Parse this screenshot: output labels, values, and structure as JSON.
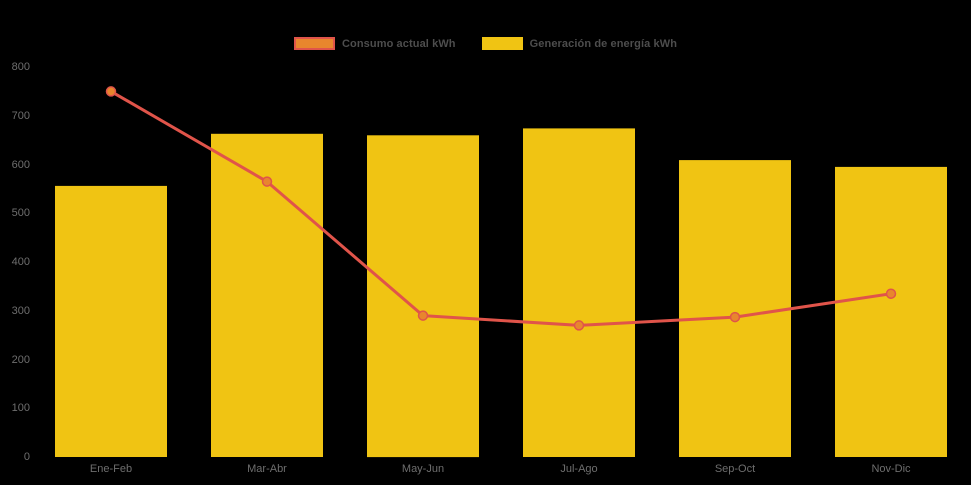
{
  "chart_data": {
    "type": "bar",
    "title": "",
    "categories": [
      "Ene-Feb",
      "Mar-Abr",
      "May-Jun",
      "Jul-Ago",
      "Sep-Oct",
      "Nov-Dic"
    ],
    "series": [
      {
        "name": "Consumo actual kWh",
        "type": "line",
        "values": [
          750,
          565,
          290,
          270,
          287,
          335
        ],
        "color": "#E0544A",
        "marker_fill": "#E8862D"
      },
      {
        "name": "Generación de energía kWh",
        "type": "bar",
        "values": [
          556,
          663,
          660,
          674,
          609,
          595
        ],
        "color": "#F0C413"
      }
    ],
    "xlabel": "",
    "ylabel": "",
    "ylim": [
      0,
      800
    ],
    "y_ticks": [
      0,
      100,
      200,
      300,
      400,
      500,
      600,
      700,
      800
    ],
    "grid": false,
    "legend_position": "top-center",
    "background_color": "#000000",
    "axis_label_color": "#6E6E6E",
    "legend_text_color": "#4D4D4D"
  }
}
